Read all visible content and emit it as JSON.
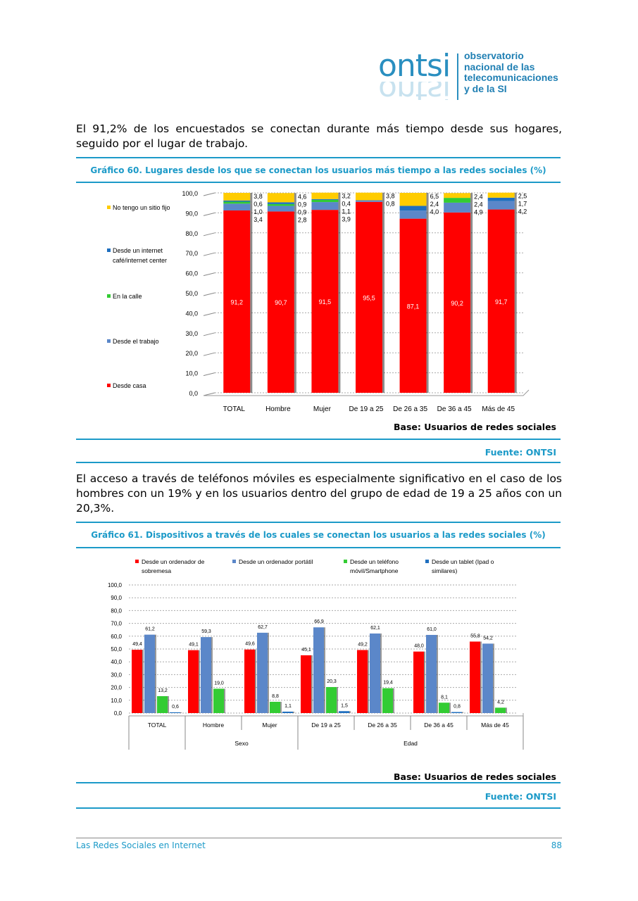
{
  "logo": {
    "word": "ontsi",
    "lines": [
      "observatorio",
      "nacional de las",
      "telecomunicaciones",
      "y de la SI"
    ]
  },
  "para1": "El 91,2% de los encuestados se conectan durante más tiempo desde sus hogares, seguido por el lugar de trabajo.",
  "para2": "El acceso a través de teléfonos móviles es especialmente significativo en el caso de los hombres con un 19% y en los usuarios dentro del grupo de edad de 19 a 25 años con un 20,3%.",
  "colors": {
    "casa": "#ff0000",
    "trabajo": "#5b87c9",
    "calle": "#33cc33",
    "cafe": "#1f6fbf",
    "nofijo": "#ffcc00",
    "accent": "#1c9ac8"
  },
  "chart_data": [
    {
      "type": "bar",
      "stacked": true,
      "title": "Gráfico 60. Lugares desde los que se conectan los usuarios más tiempo a las redes sociales (%)",
      "categories": [
        "TOTAL",
        "Hombre",
        "Mujer",
        "De 19 a 25",
        "De 26 a 35",
        "De 36 a 45",
        "Más de 45"
      ],
      "ylim": [
        0,
        100
      ],
      "yticks": [
        "0,0",
        "10,0",
        "20,0",
        "30,0",
        "40,0",
        "50,0",
        "60,0",
        "70,0",
        "80,0",
        "90,0",
        "100,0"
      ],
      "legend": "left",
      "grid": true,
      "series": [
        {
          "name": "Desde casa",
          "color": "#ff0000",
          "values": [
            91.2,
            90.7,
            91.5,
            95.5,
            87.1,
            90.2,
            91.7
          ]
        },
        {
          "name": "Desde el trabajo",
          "color": "#5b87c9",
          "values": [
            3.4,
            2.8,
            3.9,
            0.8,
            4.0,
            4.9,
            4.2
          ]
        },
        {
          "name": "En la calle",
          "color": "#33cc33",
          "values": [
            1.0,
            0.9,
            1.1,
            null,
            null,
            2.4,
            null
          ]
        },
        {
          "name": "Desde un internet café/internet center",
          "color": "#1f6fbf",
          "values": [
            0.6,
            0.9,
            0.4,
            null,
            2.4,
            null,
            1.7
          ]
        },
        {
          "name": "No tengo un sitio fijo",
          "color": "#ffcc00",
          "values": [
            3.8,
            4.6,
            3.2,
            3.8,
            6.5,
            2.4,
            2.5
          ]
        }
      ]
    },
    {
      "type": "bar",
      "title": "Gráfico 61. Dispositivos a través de los cuales se conectan los usuarios a las redes sociales (%)",
      "categories": [
        "TOTAL",
        "Hombre",
        "Mujer",
        "De 19 a 25",
        "De 26 a 35",
        "De 36 a 45",
        "Más de 45"
      ],
      "groups": [
        {
          "label": "Sexo",
          "span": [
            1,
            2
          ]
        },
        {
          "label": "Edad",
          "span": [
            3,
            6
          ]
        }
      ],
      "ylim": [
        0,
        100
      ],
      "yticks": [
        "0,0",
        "10,0",
        "20,0",
        "30,0",
        "40,0",
        "50,0",
        "60,0",
        "70,0",
        "80,0",
        "90,0",
        "100,0"
      ],
      "legend": "top",
      "grid": true,
      "series": [
        {
          "name": "Desde un ordenador de sobremesa",
          "color": "#ff0000",
          "values": [
            49.4,
            49.1,
            49.6,
            45.1,
            49.2,
            48.0,
            55.8
          ]
        },
        {
          "name": "Desde un ordenador portátil",
          "color": "#5b87c9",
          "values": [
            61.2,
            59.3,
            62.7,
            66.9,
            62.1,
            61.0,
            54.2
          ]
        },
        {
          "name": "Desde un teléfono móvil/Smartphone",
          "color": "#33cc33",
          "values": [
            13.2,
            19.0,
            8.8,
            20.3,
            19.4,
            8.1,
            4.2
          ]
        },
        {
          "name": "Desde un tablet (Ipad o similares)",
          "color": "#1f6fbf",
          "values": [
            0.6,
            null,
            1.1,
            1.5,
            null,
            0.8,
            null
          ]
        }
      ]
    }
  ],
  "base": "Base: Usuarios de redes sociales",
  "fuente": "Fuente: ONTSI",
  "footer": {
    "title": "Las Redes Sociales en Internet",
    "page": "88"
  }
}
